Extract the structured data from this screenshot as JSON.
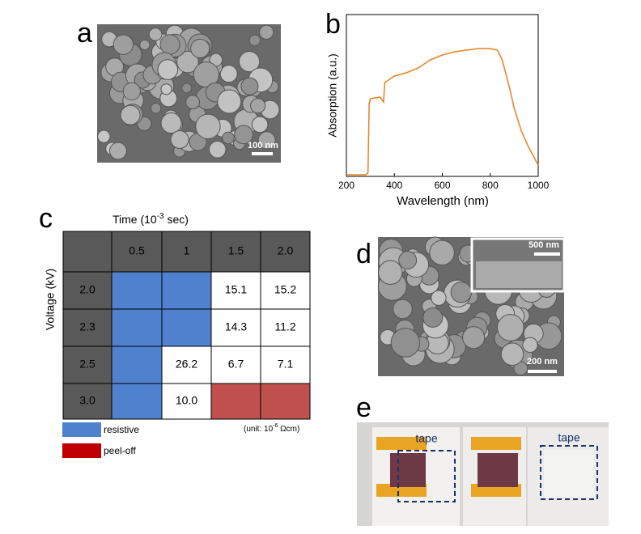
{
  "panels": {
    "a": {
      "label": "a",
      "scale_bar": "100 nm"
    },
    "b": {
      "label": "b"
    },
    "c": {
      "label": "c",
      "time_title": [
        "Time (10",
        "-3",
        " sec)"
      ],
      "voltage_title": "Voltage (kV)",
      "columns": [
        "0.5",
        "1",
        "1.5",
        "2.0"
      ],
      "rows": [
        {
          "voltage": "2.0",
          "cells": [
            {
              "fill": "#4f81cf"
            },
            {
              "fill": "#4f81cf"
            },
            {
              "text": "15.1"
            },
            {
              "text": "15.2"
            }
          ]
        },
        {
          "voltage": "2.3",
          "cells": [
            {
              "fill": "#4f81cf"
            },
            {
              "fill": "#4f81cf"
            },
            {
              "text": "14.3"
            },
            {
              "text": "11.2"
            }
          ]
        },
        {
          "voltage": "2.5",
          "cells": [
            {
              "fill": "#4f81cf"
            },
            {
              "text": "26.2"
            },
            {
              "text": "6.7"
            },
            {
              "text": "7.1"
            }
          ]
        },
        {
          "voltage": "3.0",
          "cells": [
            {
              "fill": "#4f81cf"
            },
            {
              "text": "10.0"
            },
            {
              "fill": "#c0504d"
            },
            {
              "fill": "#c0504d"
            }
          ]
        }
      ],
      "legend": [
        {
          "name": "resistive",
          "color": "#4f81cf"
        },
        {
          "name": "peel-off",
          "color": "#c00000"
        }
      ],
      "unit": [
        "(unit: 10",
        "-6",
        " Ωcm)"
      ]
    },
    "d": {
      "label": "d",
      "inset_scale_bar": "500 nm",
      "scale_bar": "200 nm"
    },
    "e": {
      "label": "e",
      "tape_left": "tape",
      "tape_right": "tape"
    }
  },
  "chart_data": {
    "type": "line",
    "x_label": "Wavelength (nm)",
    "y_label": "Absorption (a.u.)",
    "x": [
      200,
      280,
      290,
      295,
      300,
      340,
      355,
      360,
      400,
      450,
      500,
      550,
      600,
      650,
      700,
      750,
      800,
      830,
      850,
      880,
      900,
      930,
      960,
      1000
    ],
    "series": [
      {
        "color": "#e8801e",
        "values": [
          0.01,
          0.01,
          0.02,
          0.45,
          0.48,
          0.49,
          0.46,
          0.58,
          0.62,
          0.64,
          0.67,
          0.72,
          0.75,
          0.77,
          0.78,
          0.79,
          0.79,
          0.78,
          0.72,
          0.55,
          0.42,
          0.28,
          0.18,
          0.07
        ]
      }
    ],
    "xlim": [
      200,
      1000
    ],
    "ylim": [
      0,
      1
    ],
    "xticks": [
      200,
      400,
      600,
      800,
      1000
    ]
  }
}
